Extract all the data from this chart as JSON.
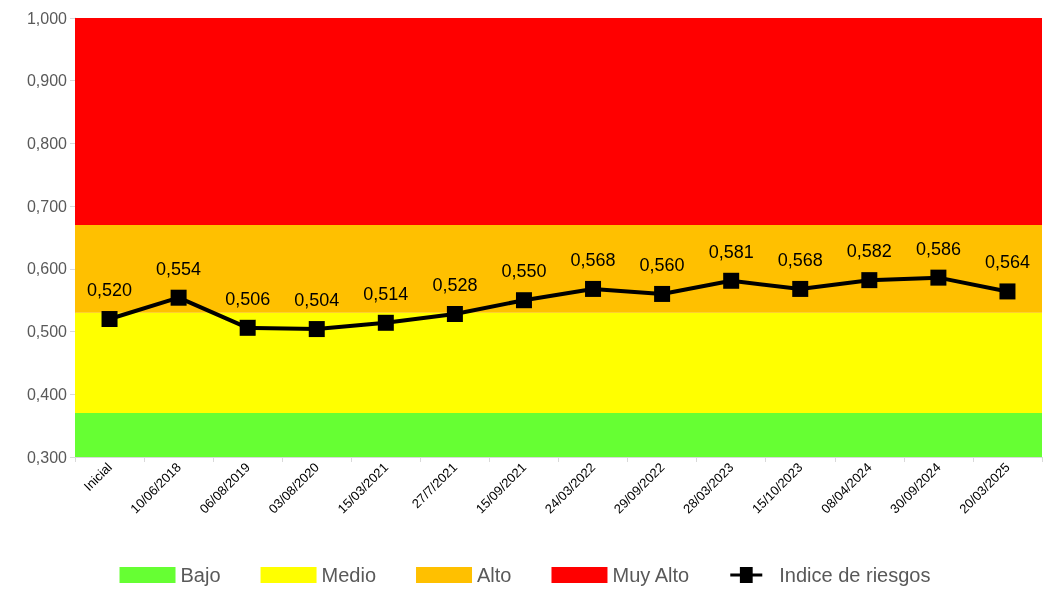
{
  "chart_data": {
    "type": "line",
    "categories": [
      "Inicial",
      "10/06/2018",
      "06/08/2019",
      "03/08/2020",
      "15/03/2021",
      "27/7/2021",
      "15/09/2021",
      "24/03/2022",
      "29/09/2022",
      "28/03/2023",
      "15/10/2023",
      "08/04/2024",
      "30/09/2024",
      "20/03/2025"
    ],
    "series": [
      {
        "name": "Indice de riesgos",
        "color": "#000000",
        "values": [
          0.52,
          0.554,
          0.506,
          0.504,
          0.514,
          0.528,
          0.55,
          0.568,
          0.56,
          0.581,
          0.568,
          0.582,
          0.586,
          0.564
        ],
        "value_labels": [
          "0,520",
          "0,554",
          "0,506",
          "0,504",
          "0,514",
          "0,528",
          "0,550",
          "0,568",
          "0,560",
          "0,581",
          "0,568",
          "0,582",
          "0,586",
          "0,564"
        ]
      }
    ],
    "bands": [
      {
        "axis": "y",
        "from": 0.3,
        "to": 0.37,
        "label": "Bajo",
        "color": "#66ff33"
      },
      {
        "axis": "y",
        "from": 0.37,
        "to": 0.53,
        "label": "Medio",
        "color": "#ffff00"
      },
      {
        "axis": "y",
        "from": 0.53,
        "to": 0.67,
        "label": "Alto",
        "color": "#ffc000"
      },
      {
        "axis": "y",
        "from": 0.67,
        "to": 1.0,
        "label": "Muy Alto",
        "color": "#ff0000"
      }
    ],
    "ylim": [
      0.3,
      1.0
    ],
    "yticks": [
      {
        "value": 0.3,
        "label": "0,300"
      },
      {
        "value": 0.4,
        "label": "0,400"
      },
      {
        "value": 0.5,
        "label": "0,500"
      },
      {
        "value": 0.6,
        "label": "0,600"
      },
      {
        "value": 0.7,
        "label": "0,700"
      },
      {
        "value": 0.8,
        "label": "0,800"
      },
      {
        "value": 0.9,
        "label": "0,900"
      },
      {
        "value": 1.0,
        "label": "1,000"
      }
    ],
    "marker": "square",
    "line_style": "solid",
    "legend": "bottom",
    "grid": false
  }
}
